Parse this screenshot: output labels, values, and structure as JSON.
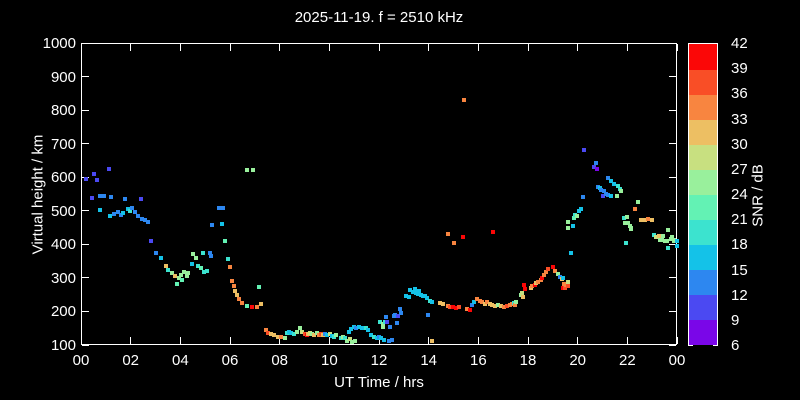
{
  "title": "2025-11-19. f = 2510 kHz",
  "chart_data": {
    "type": "scatter",
    "title": "2025-11-19. f = 2510 kHz",
    "xlabel": "UT Time / hrs",
    "ylabel": "Virtual height / km",
    "colorbar_label": "SNR / dB",
    "xlim": [
      0,
      24
    ],
    "ylim": [
      100,
      1000
    ],
    "x_tick_hours": [
      0,
      2,
      4,
      6,
      8,
      10,
      12,
      14,
      16,
      18,
      20,
      22,
      24
    ],
    "x_tick_labels": [
      "00",
      "02",
      "04",
      "06",
      "08",
      "10",
      "12",
      "14",
      "16",
      "18",
      "20",
      "22",
      "00"
    ],
    "y_tick_values": [
      100,
      200,
      300,
      400,
      500,
      600,
      700,
      800,
      900,
      1000
    ],
    "snr_tick_values": [
      6,
      9,
      12,
      15,
      18,
      21,
      24,
      27,
      30,
      33,
      36,
      39,
      42
    ],
    "snr_bin_colors": [
      "#7a06e8",
      "#4b49f2",
      "#2d87f0",
      "#14c2e8",
      "#3ce3cf",
      "#63f2b4",
      "#99f09c",
      "#c8e080",
      "#edbf63",
      "#f88540",
      "#f94e26",
      "#fb0707"
    ],
    "grid": false,
    "legend_position": "colorbar-right",
    "background_color": "#000000",
    "points_format": [
      "ut_hours",
      "virtual_height_km",
      "snr_db"
    ],
    "points": [
      [
        0.21,
        595,
        10.5
      ],
      [
        0.43,
        537,
        10.5
      ],
      [
        0.51,
        610,
        10.5
      ],
      [
        0.65,
        592,
        10.5
      ],
      [
        0.76,
        502,
        16.5
      ],
      [
        0.78,
        545,
        13.5
      ],
      [
        0.93,
        544,
        13.5
      ],
      [
        1.12,
        625,
        10.5
      ],
      [
        1.16,
        485,
        16.5
      ],
      [
        1.19,
        542,
        13.5
      ],
      [
        1.32,
        489,
        13.5
      ],
      [
        1.47,
        496,
        13.5
      ],
      [
        1.61,
        488,
        13.5
      ],
      [
        1.71,
        492,
        16.5
      ],
      [
        1.77,
        534,
        13.5
      ],
      [
        1.9,
        506,
        16.5
      ],
      [
        1.97,
        500,
        19.5
      ],
      [
        2.04,
        509,
        13.5
      ],
      [
        2.17,
        496,
        13.5
      ],
      [
        2.28,
        484,
        13.5
      ],
      [
        2.4,
        534,
        10.5
      ],
      [
        2.44,
        476,
        13.5
      ],
      [
        2.58,
        472,
        13.5
      ],
      [
        2.71,
        466,
        13.5
      ],
      [
        2.82,
        410,
        10.5
      ],
      [
        3.02,
        374,
        13.5
      ],
      [
        3.21,
        359,
        16.5
      ],
      [
        3.43,
        336,
        31.5
      ],
      [
        3.52,
        324,
        19.5
      ],
      [
        3.66,
        316,
        25.5
      ],
      [
        3.79,
        306,
        31.5
      ],
      [
        3.86,
        282,
        22.5
      ],
      [
        3.93,
        301,
        25.5
      ],
      [
        4.03,
        308,
        25.5
      ],
      [
        4.06,
        294,
        22.5
      ],
      [
        4.14,
        319,
        25.5
      ],
      [
        4.25,
        306,
        25.5
      ],
      [
        4.3,
        314,
        25.5
      ],
      [
        4.48,
        340,
        16.5
      ],
      [
        4.52,
        371,
        25.5
      ],
      [
        4.64,
        359,
        25.5
      ],
      [
        4.72,
        334,
        19.5
      ],
      [
        4.84,
        329,
        22.5
      ],
      [
        4.92,
        374,
        19.5
      ],
      [
        4.95,
        317,
        19.5
      ],
      [
        5.06,
        320,
        19.5
      ],
      [
        5.19,
        373,
        13.5
      ],
      [
        5.25,
        364,
        13.5
      ],
      [
        5.26,
        459,
        13.5
      ],
      [
        5.56,
        507,
        13.5
      ],
      [
        5.67,
        461,
        16.5
      ],
      [
        5.7,
        507,
        13.5
      ],
      [
        5.8,
        409,
        22.5
      ],
      [
        5.9,
        356,
        19.5
      ],
      [
        6.0,
        332,
        34.5
      ],
      [
        6.1,
        292,
        34.5
      ],
      [
        6.17,
        276,
        34.5
      ],
      [
        6.21,
        262,
        31.5
      ],
      [
        6.3,
        249,
        31.5
      ],
      [
        6.37,
        236,
        34.5
      ],
      [
        6.5,
        224,
        34.5
      ],
      [
        6.68,
        217,
        22.5
      ],
      [
        6.68,
        623,
        25.5
      ],
      [
        6.88,
        214,
        40.5
      ],
      [
        6.91,
        623,
        25.5
      ],
      [
        7.09,
        214,
        34.5
      ],
      [
        7.18,
        274,
        22.5
      ],
      [
        7.25,
        222,
        31.5
      ],
      [
        7.45,
        145,
        34.5
      ],
      [
        7.54,
        137,
        37.5
      ],
      [
        7.65,
        133,
        31.5
      ],
      [
        7.78,
        129,
        31.5
      ],
      [
        7.95,
        125,
        31.5
      ],
      [
        8.06,
        123,
        34.5
      ],
      [
        8.22,
        121,
        25.5
      ],
      [
        8.29,
        135,
        19.5
      ],
      [
        8.37,
        140,
        16.5
      ],
      [
        8.46,
        135,
        16.5
      ],
      [
        8.57,
        132,
        19.5
      ],
      [
        8.7,
        138,
        25.5
      ],
      [
        8.8,
        150,
        25.5
      ],
      [
        8.89,
        140,
        28.5
      ],
      [
        9.0,
        132,
        37.5
      ],
      [
        9.1,
        130,
        40.5
      ],
      [
        9.16,
        132,
        31.5
      ],
      [
        9.24,
        135,
        28.5
      ],
      [
        9.32,
        132,
        25.5
      ],
      [
        9.4,
        130,
        31.5
      ],
      [
        9.49,
        135,
        25.5
      ],
      [
        9.57,
        130,
        34.5
      ],
      [
        9.65,
        132,
        37.5
      ],
      [
        9.74,
        130,
        31.5
      ],
      [
        9.84,
        132,
        13.5
      ],
      [
        9.92,
        130,
        16.5
      ],
      [
        10.01,
        134,
        28.5
      ],
      [
        10.11,
        128,
        16.5
      ],
      [
        10.19,
        125,
        19.5
      ],
      [
        10.28,
        130,
        25.5
      ],
      [
        10.46,
        122,
        19.5
      ],
      [
        10.55,
        125,
        25.5
      ],
      [
        10.65,
        120,
        19.5
      ],
      [
        10.72,
        113,
        25.5
      ],
      [
        10.78,
        140,
        16.5
      ],
      [
        10.82,
        117,
        28.5
      ],
      [
        10.89,
        148,
        16.5
      ],
      [
        10.92,
        110,
        25.5
      ],
      [
        11.0,
        155,
        16.5
      ],
      [
        11.03,
        113,
        25.5
      ],
      [
        11.09,
        152,
        13.5
      ],
      [
        11.19,
        155,
        16.5
      ],
      [
        11.3,
        150,
        16.5
      ],
      [
        11.46,
        152,
        19.5
      ],
      [
        11.57,
        145,
        16.5
      ],
      [
        11.67,
        130,
        16.5
      ],
      [
        11.81,
        125,
        19.5
      ],
      [
        11.9,
        122,
        16.5
      ],
      [
        12.0,
        125,
        13.5
      ],
      [
        12.08,
        120,
        13.5
      ],
      [
        12.1,
        120,
        16.5
      ],
      [
        12.2,
        115,
        16.5
      ],
      [
        12.42,
        112,
        13.5
      ],
      [
        12.51,
        115,
        13.5
      ],
      [
        12.06,
        170,
        19.5
      ],
      [
        12.15,
        162,
        25.5
      ],
      [
        12.18,
        155,
        25.5
      ],
      [
        12.24,
        170,
        19.5
      ],
      [
        12.28,
        183,
        13.5
      ],
      [
        12.31,
        168,
        10.5
      ],
      [
        12.44,
        155,
        13.5
      ],
      [
        12.61,
        185,
        13.5
      ],
      [
        12.64,
        188,
        13.5
      ],
      [
        12.71,
        167,
        13.5
      ],
      [
        12.78,
        185,
        10.5
      ],
      [
        12.85,
        208,
        13.5
      ],
      [
        12.87,
        195,
        13.5
      ],
      [
        13.09,
        245,
        16.5
      ],
      [
        13.22,
        242,
        16.5
      ],
      [
        13.25,
        263,
        16.5
      ],
      [
        13.36,
        258,
        16.5
      ],
      [
        13.45,
        268,
        16.5
      ],
      [
        13.49,
        255,
        16.5
      ],
      [
        13.56,
        252,
        16.5
      ],
      [
        13.63,
        260,
        16.5
      ],
      [
        13.7,
        250,
        16.5
      ],
      [
        13.77,
        245,
        16.5
      ],
      [
        13.86,
        247,
        16.5
      ],
      [
        13.93,
        240,
        16.5
      ],
      [
        13.97,
        188,
        13.5
      ],
      [
        14.06,
        232,
        19.5
      ],
      [
        14.13,
        228,
        16.5
      ],
      [
        14.13,
        112,
        31.5
      ],
      [
        14.47,
        225,
        31.5
      ],
      [
        14.56,
        222,
        31.5
      ],
      [
        14.76,
        215,
        34.5
      ],
      [
        14.78,
        431,
        34.5
      ],
      [
        14.87,
        212,
        37.5
      ],
      [
        14.98,
        212,
        40.5
      ],
      [
        15.03,
        405,
        34.5
      ],
      [
        15.11,
        210,
        40.5
      ],
      [
        15.21,
        212,
        37.5
      ],
      [
        15.38,
        421,
        40.5
      ],
      [
        15.43,
        830,
        34.5
      ],
      [
        15.55,
        208,
        34.5
      ],
      [
        15.66,
        205,
        40.5
      ],
      [
        15.75,
        220,
        13.5
      ],
      [
        15.84,
        228,
        16.5
      ],
      [
        15.95,
        238,
        34.5
      ],
      [
        16.05,
        232,
        34.5
      ],
      [
        16.15,
        228,
        34.5
      ],
      [
        16.25,
        222,
        31.5
      ],
      [
        16.36,
        228,
        34.5
      ],
      [
        16.46,
        222,
        31.5
      ],
      [
        16.56,
        220,
        31.5
      ],
      [
        16.59,
        436,
        40.5
      ],
      [
        16.69,
        217,
        31.5
      ],
      [
        16.79,
        220,
        25.5
      ],
      [
        16.9,
        217,
        31.5
      ],
      [
        17.03,
        214,
        34.5
      ],
      [
        17.14,
        217,
        37.5
      ],
      [
        17.27,
        220,
        34.5
      ],
      [
        17.37,
        222,
        34.5
      ],
      [
        17.44,
        225,
        19.5
      ],
      [
        17.47,
        220,
        34.5
      ],
      [
        17.53,
        228,
        25.5
      ],
      [
        17.7,
        249,
        25.5
      ],
      [
        17.77,
        254,
        28.5
      ],
      [
        17.8,
        244,
        31.5
      ],
      [
        17.84,
        279,
        40.5
      ],
      [
        17.88,
        267,
        40.5
      ],
      [
        18.11,
        271,
        31.5
      ],
      [
        18.17,
        277,
        34.5
      ],
      [
        18.28,
        279,
        40.5
      ],
      [
        18.33,
        284,
        31.5
      ],
      [
        18.41,
        289,
        34.5
      ],
      [
        18.51,
        294,
        34.5
      ],
      [
        18.55,
        301,
        40.5
      ],
      [
        18.65,
        309,
        34.5
      ],
      [
        18.71,
        317,
        34.5
      ],
      [
        18.82,
        327,
        37.5
      ],
      [
        19.02,
        331,
        40.5
      ],
      [
        19.1,
        321,
        34.5
      ],
      [
        19.19,
        311,
        25.5
      ],
      [
        19.29,
        304,
        13.5
      ],
      [
        19.36,
        297,
        31.5
      ],
      [
        19.39,
        299,
        16.5
      ],
      [
        19.42,
        271,
        40.5
      ],
      [
        19.46,
        281,
        34.5
      ],
      [
        19.5,
        270,
        37.5
      ],
      [
        19.55,
        279,
        34.5
      ],
      [
        19.6,
        277,
        37.5
      ],
      [
        19.63,
        287,
        28.5
      ],
      [
        19.6,
        466,
        25.5
      ],
      [
        19.6,
        449,
        25.5
      ],
      [
        19.73,
        374,
        16.5
      ],
      [
        19.83,
        454,
        16.5
      ],
      [
        19.87,
        477,
        22.5
      ],
      [
        19.89,
        486,
        19.5
      ],
      [
        19.96,
        484,
        25.5
      ],
      [
        20.07,
        499,
        16.5
      ],
      [
        20.13,
        504,
        16.5
      ],
      [
        20.2,
        540,
        13.5
      ],
      [
        20.27,
        681,
        10.5
      ],
      [
        20.65,
        631,
        10.5
      ],
      [
        20.74,
        643,
        13.5
      ],
      [
        20.78,
        625,
        7.5
      ],
      [
        20.81,
        571,
        13.5
      ],
      [
        20.88,
        568,
        16.5
      ],
      [
        20.94,
        563,
        13.5
      ],
      [
        21.01,
        543,
        10.5
      ],
      [
        21.05,
        558,
        13.5
      ],
      [
        21.15,
        551,
        13.5
      ],
      [
        21.24,
        598,
        13.5
      ],
      [
        21.24,
        548,
        13.5
      ],
      [
        21.35,
        588,
        16.5
      ],
      [
        21.35,
        545,
        16.5
      ],
      [
        21.46,
        581,
        16.5
      ],
      [
        21.59,
        543,
        25.5
      ],
      [
        21.62,
        575,
        19.5
      ],
      [
        21.69,
        565,
        19.5
      ],
      [
        21.76,
        558,
        25.5
      ],
      [
        21.86,
        479,
        19.5
      ],
      [
        21.91,
        464,
        25.5
      ],
      [
        21.95,
        404,
        19.5
      ],
      [
        22.0,
        482,
        25.5
      ],
      [
        22.02,
        464,
        25.5
      ],
      [
        22.09,
        454,
        25.5
      ],
      [
        22.13,
        446,
        25.5
      ],
      [
        22.16,
        449,
        25.5
      ],
      [
        22.29,
        506,
        34.5
      ],
      [
        22.43,
        526,
        25.5
      ],
      [
        22.54,
        474,
        31.5
      ],
      [
        22.7,
        472,
        31.5
      ],
      [
        22.83,
        476,
        34.5
      ],
      [
        23.0,
        472,
        31.5
      ],
      [
        23.08,
        429,
        19.5
      ],
      [
        23.15,
        421,
        31.5
      ],
      [
        23.17,
        422,
        28.5
      ],
      [
        23.27,
        426,
        31.5
      ],
      [
        23.31,
        414,
        25.5
      ],
      [
        23.38,
        414,
        25.5
      ],
      [
        23.42,
        424,
        25.5
      ],
      [
        23.51,
        409,
        25.5
      ],
      [
        23.58,
        409,
        25.5
      ],
      [
        23.64,
        442,
        25.5
      ],
      [
        23.64,
        389,
        19.5
      ],
      [
        23.74,
        417,
        25.5
      ],
      [
        23.78,
        422,
        25.5
      ],
      [
        23.87,
        411,
        25.5
      ],
      [
        23.89,
        414,
        25.5
      ],
      [
        23.98,
        409,
        16.5
      ],
      [
        23.98,
        394,
        16.5
      ]
    ]
  }
}
